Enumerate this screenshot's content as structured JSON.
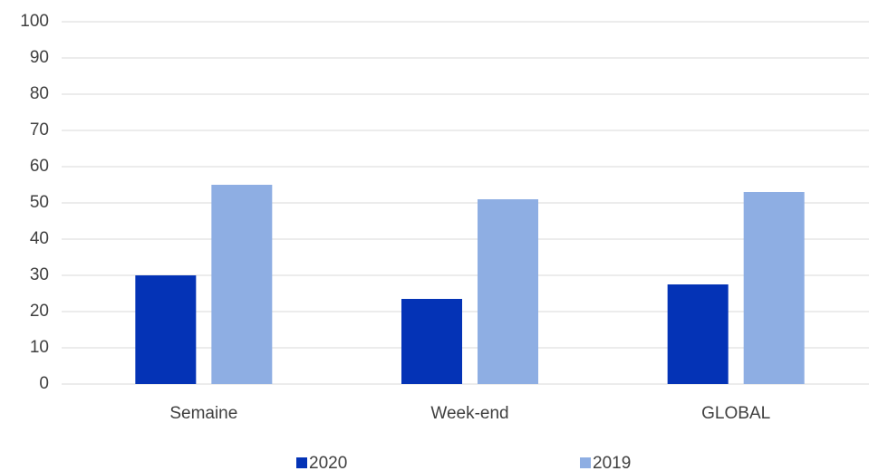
{
  "chart_data": {
    "type": "bar",
    "categories": [
      "Semaine",
      "Week-end",
      "GLOBAL"
    ],
    "series": [
      {
        "name": "2020",
        "color": "#0433b6",
        "values": [
          30,
          23.5,
          27.5
        ]
      },
      {
        "name": "2019",
        "color": "#8eaee3",
        "values": [
          55,
          51,
          53
        ]
      }
    ],
    "ylim": [
      0,
      100
    ],
    "yticks": [
      0,
      10,
      20,
      30,
      40,
      50,
      60,
      70,
      80,
      90,
      100
    ],
    "grid": true,
    "legend": "bottom"
  }
}
